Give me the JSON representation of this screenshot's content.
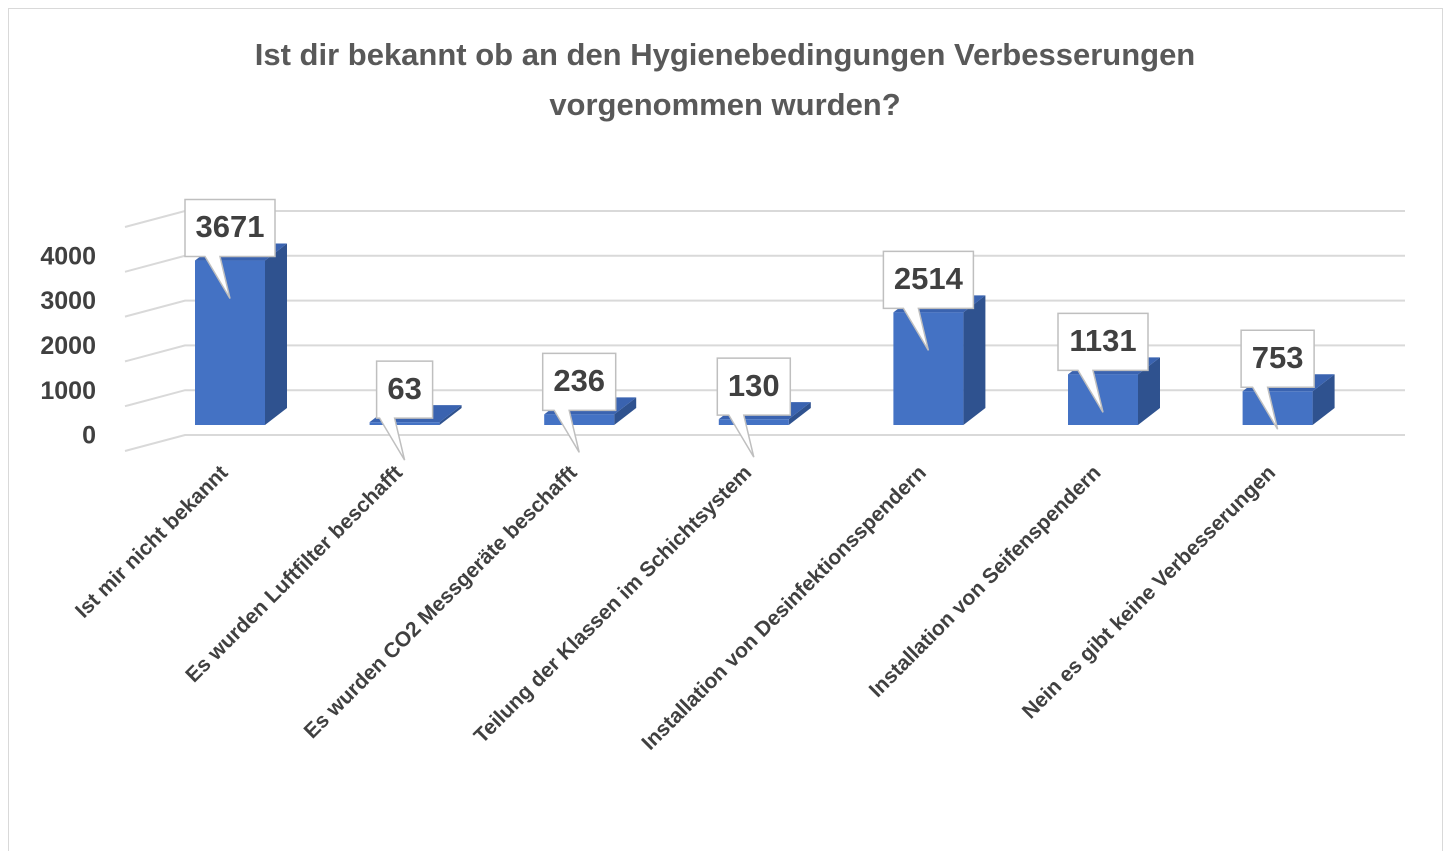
{
  "chart_data": {
    "type": "bar3d",
    "title": "Ist dir bekannt ob an den Hygienebedingungen Verbesserungen vorgenommen wurden?",
    "categories": [
      "Ist mir nicht bekannt",
      "Es wurden Luftfilter beschafft",
      "Es wurden CO2 Messgeräte beschafft",
      "Teilung der Klassen im Schichtsystem",
      "Installation von Desinfektionsspendern",
      "Installation von Seifenspendern",
      "Nein es gibt keine Verbesserungen"
    ],
    "values": [
      3671,
      63,
      236,
      130,
      2514,
      1131,
      753
    ],
    "color": "#4472c4",
    "ylim": [
      0,
      5000
    ],
    "yticks": [
      0,
      1000,
      2000,
      3000,
      4000
    ],
    "grid": true
  }
}
